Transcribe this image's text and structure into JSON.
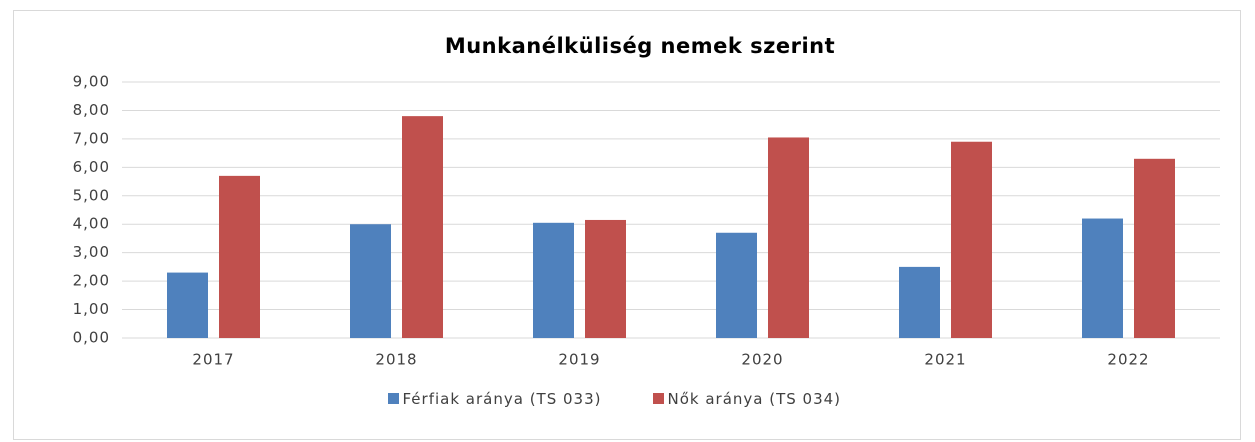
{
  "chart_data": {
    "type": "bar",
    "title": "Munkanélküliség nemek szerint",
    "categories": [
      "2017",
      "2018",
      "2019",
      "2020",
      "2021",
      "2022"
    ],
    "series": [
      {
        "name": "Férfiak aránya (TS 033)",
        "color": "#4f81bd",
        "values": [
          2.3,
          4.0,
          4.05,
          3.7,
          2.5,
          4.2
        ]
      },
      {
        "name": "Nők aránya (TS 034)",
        "color": "#c0504d",
        "values": [
          5.7,
          7.8,
          4.15,
          7.05,
          6.9,
          6.3
        ]
      }
    ],
    "ylim": [
      0,
      9
    ],
    "yticks": [
      {
        "value": 0,
        "label": "0,00"
      },
      {
        "value": 1,
        "label": "1,00"
      },
      {
        "value": 2,
        "label": "2,00"
      },
      {
        "value": 3,
        "label": "3,00"
      },
      {
        "value": 4,
        "label": "4,00"
      },
      {
        "value": 5,
        "label": "5,00"
      },
      {
        "value": 6,
        "label": "6,00"
      },
      {
        "value": 7,
        "label": "7,00"
      },
      {
        "value": 8,
        "label": "8,00"
      },
      {
        "value": 9,
        "label": "9,00"
      }
    ],
    "grid": true,
    "legend": "bottom"
  }
}
